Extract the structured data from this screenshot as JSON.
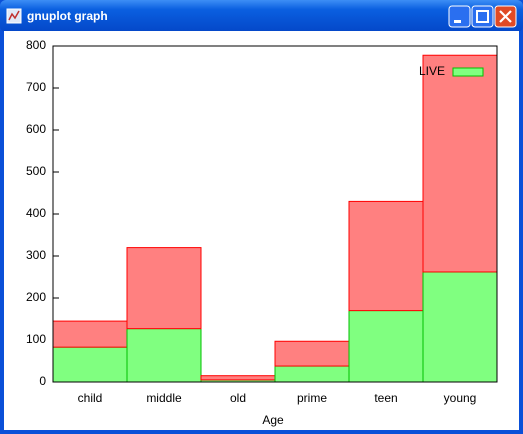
{
  "window": {
    "title": "gnuplot graph"
  },
  "chart_data": {
    "type": "stacked-bar",
    "x_label": "Age",
    "categories": [
      "child",
      "middle",
      "old",
      "prime",
      "teen",
      "young"
    ],
    "series": [
      {
        "name": "LIVE",
        "color": "#80ff80",
        "edge": "#00c000",
        "values": [
          83,
          127,
          5,
          38,
          170,
          262
        ]
      },
      {
        "color": "#ff8080",
        "edge": "#ff0000",
        "values": [
          62,
          193,
          10,
          59,
          260,
          516
        ]
      }
    ],
    "ylim": [
      0,
      800
    ],
    "yticks": [
      0,
      100,
      200,
      300,
      400,
      500,
      600,
      700,
      800
    ],
    "legend": "top-right"
  }
}
